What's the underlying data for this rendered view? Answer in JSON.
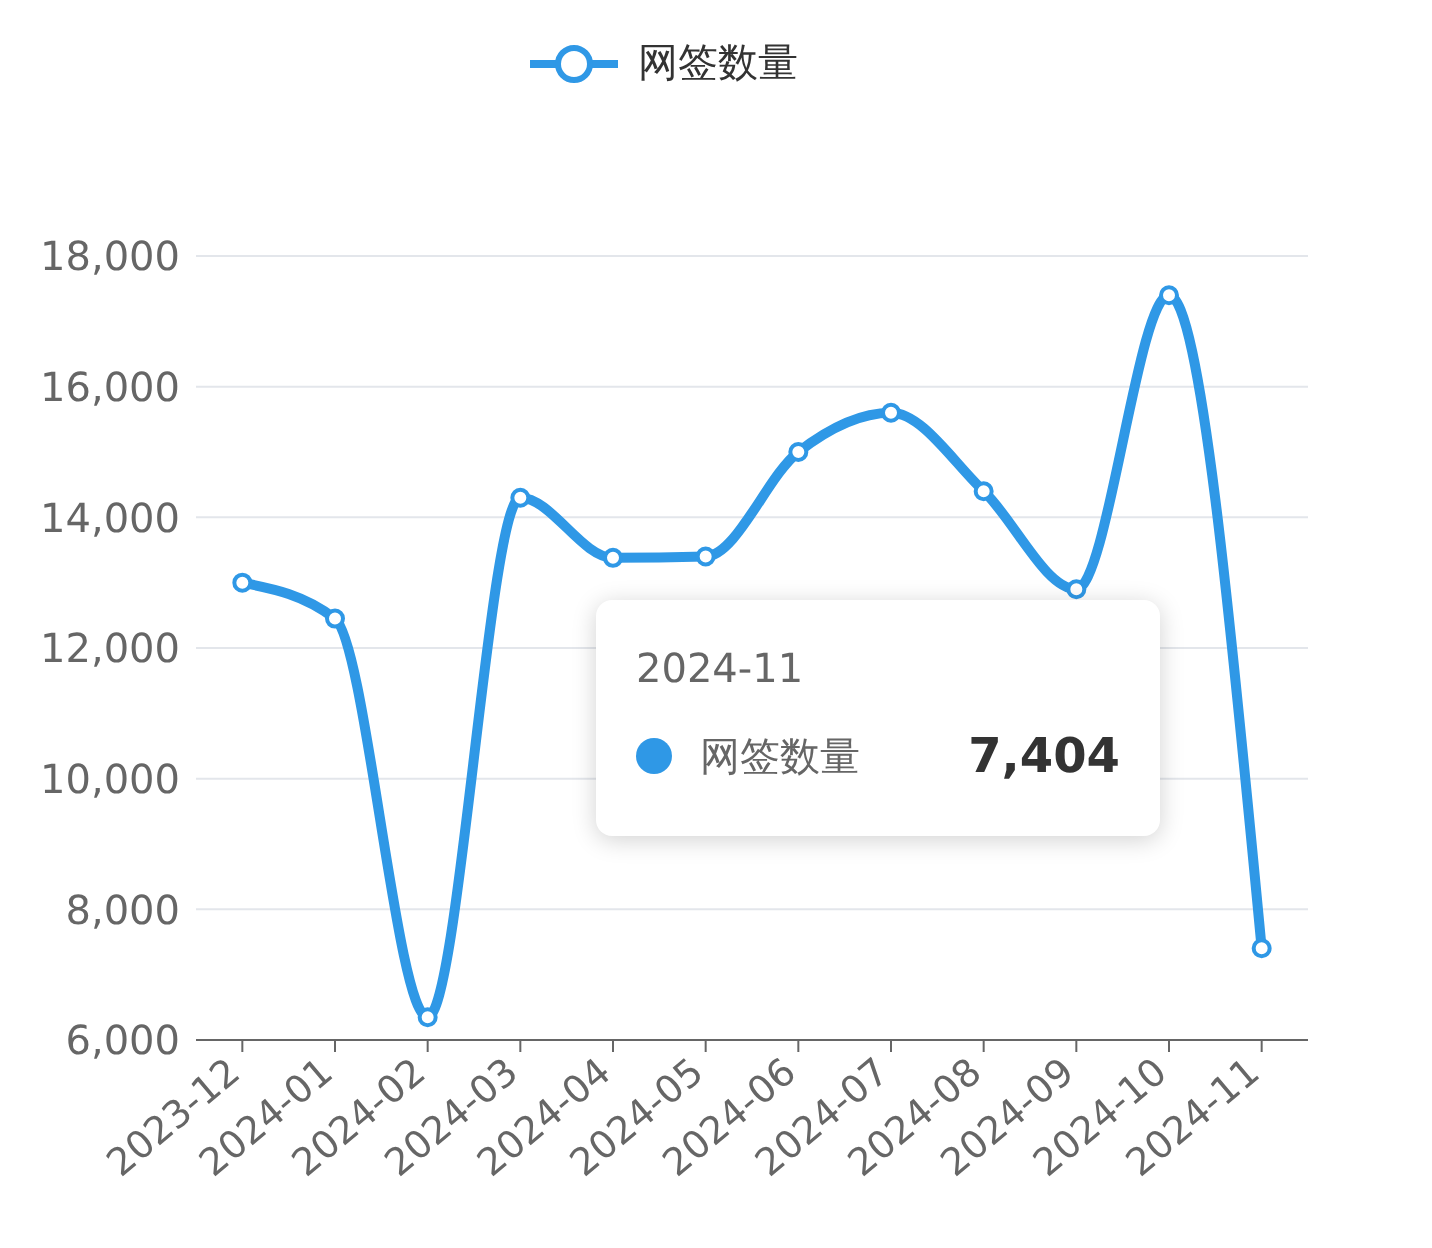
{
  "chart_data": {
    "type": "line",
    "categories": [
      "2023-12",
      "2024-01",
      "2024-02",
      "2024-03",
      "2024-04",
      "2024-05",
      "2024-06",
      "2024-07",
      "2024-08",
      "2024-09",
      "2024-10",
      "2024-11"
    ],
    "series": [
      {
        "name": "网签数量",
        "color": "#2f98e6",
        "values": [
          13000,
          12450,
          6350,
          14300,
          13380,
          13400,
          15000,
          15600,
          14400,
          12900,
          17400,
          7404
        ]
      }
    ],
    "ylim": [
      6000,
      18000
    ],
    "yticks": [
      {
        "value": 6000,
        "label": "6,000"
      },
      {
        "value": 8000,
        "label": "8,000"
      },
      {
        "value": 10000,
        "label": "10,000"
      },
      {
        "value": 12000,
        "label": "12,000"
      },
      {
        "value": 14000,
        "label": "14,000"
      },
      {
        "value": 16000,
        "label": "16,000"
      },
      {
        "value": 18000,
        "label": "18,000"
      }
    ],
    "grid": "y",
    "legend": "top",
    "marker": "circle",
    "line_style": "solid",
    "annotations": [
      "2024-11",
      "网签数量",
      "7,404"
    ]
  }
}
